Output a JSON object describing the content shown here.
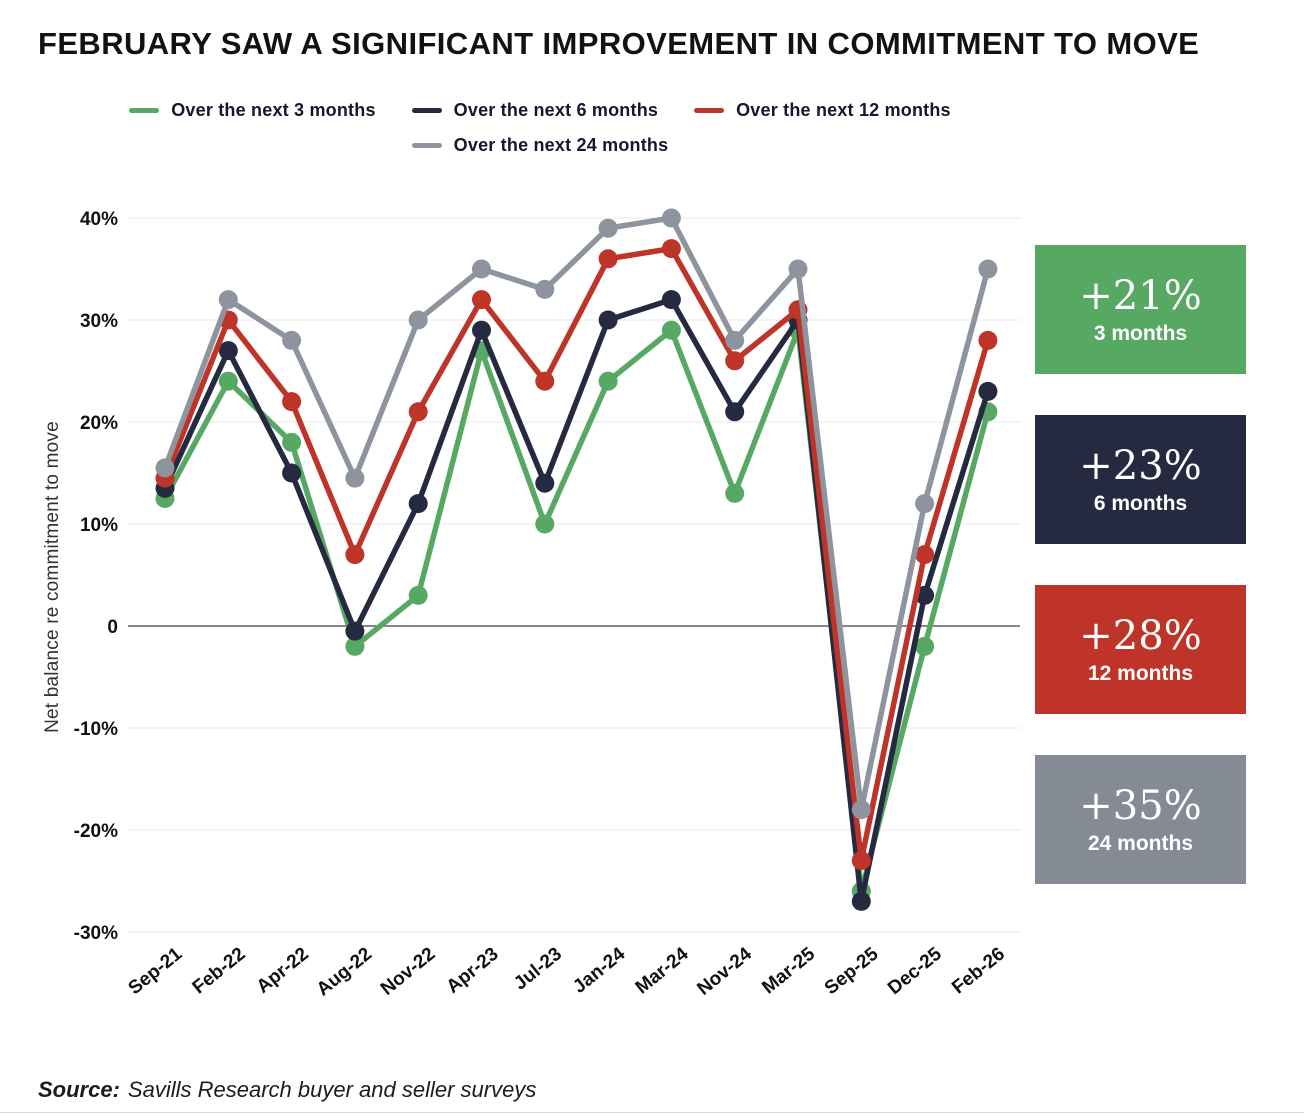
{
  "title": "FEBRUARY SAW A SIGNIFICANT IMPROVEMENT IN COMMITMENT TO MOVE",
  "legend": [
    {
      "label": "Over the next 3 months",
      "color": "#57a863"
    },
    {
      "label": "Over the next 6 months",
      "color": "#252a40"
    },
    {
      "label": "Over the next 12 months",
      "color": "#be3428"
    },
    {
      "label": "Over the next 24 months",
      "color": "#8d949e"
    }
  ],
  "chart_data": {
    "type": "line",
    "categories": [
      "Sep-21",
      "Feb-22",
      "Apr-22",
      "Aug-22",
      "Nov-22",
      "Apr-23",
      "Jul-23",
      "Jan-24",
      "Mar-24",
      "Nov-24",
      "Mar-25",
      "Sep-25",
      "Dec-25",
      "Feb-26"
    ],
    "series": [
      {
        "name": "Over the next 3 months",
        "color": "#57a863",
        "values": [
          12.5,
          24,
          18,
          -2,
          3,
          27,
          10,
          24,
          29,
          13,
          29,
          -26,
          -2,
          21
        ]
      },
      {
        "name": "Over the next 6 months",
        "color": "#252a40",
        "values": [
          13.5,
          27,
          15,
          -0.5,
          12,
          29,
          14,
          30,
          32,
          21,
          30,
          -27,
          3,
          23
        ]
      },
      {
        "name": "Over the next 12 months",
        "color": "#be3428",
        "values": [
          14.5,
          30,
          22,
          7,
          21,
          32,
          24,
          36,
          37,
          26,
          31,
          -23,
          7,
          28
        ]
      },
      {
        "name": "Over the next 24 months",
        "color": "#8d949e",
        "values": [
          15.5,
          32,
          28,
          14.5,
          30,
          35,
          33,
          39,
          40,
          28,
          35,
          -18,
          12,
          35
        ]
      }
    ],
    "title": "FEBRUARY SAW A SIGNIFICANT IMPROVEMENT IN COMMITMENT TO MOVE",
    "xlabel": "",
    "ylabel": "Net balance re commitment to move",
    "ylim": [
      -30,
      40
    ],
    "grid": true,
    "legend_position": "top",
    "y_ticks": [
      {
        "value": 40,
        "label": "40%"
      },
      {
        "value": 30,
        "label": "30%"
      },
      {
        "value": 20,
        "label": "20%"
      },
      {
        "value": 10,
        "label": "10%"
      },
      {
        "value": 0,
        "label": "0"
      },
      {
        "value": -10,
        "label": "-10%"
      },
      {
        "value": -20,
        "label": "-20%"
      },
      {
        "value": -30,
        "label": "-30%"
      }
    ]
  },
  "badges": [
    {
      "value": "+21%",
      "label": "3 months",
      "color": "#57a863"
    },
    {
      "value": "+23%",
      "label": "6 months",
      "color": "#252a40"
    },
    {
      "value": "+28%",
      "label": "12 months",
      "color": "#be3428"
    },
    {
      "value": "+35%",
      "label": "24 months",
      "color": "#848b94"
    }
  ],
  "source": {
    "prefix": "Source:",
    "text": "Savills Research buyer and seller surveys"
  }
}
